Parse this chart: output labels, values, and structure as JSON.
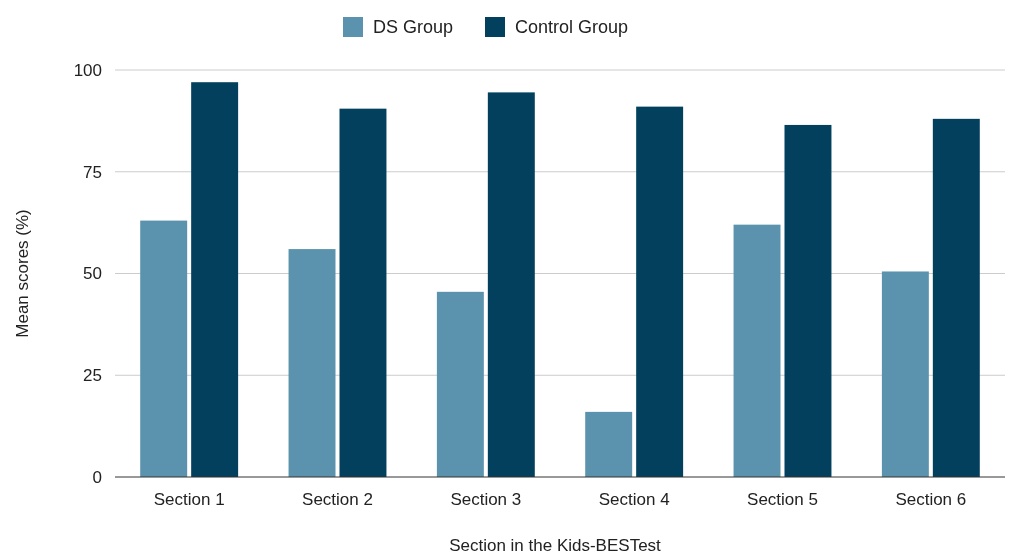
{
  "chart_data": {
    "type": "bar",
    "xlabel": "Section in the Kids-BESTest",
    "ylabel": "Mean scores (%)",
    "categories": [
      "Section 1",
      "Section 2",
      "Section 3",
      "Section 4",
      "Section 5",
      "Section 6"
    ],
    "series": [
      {
        "name": "DS Group",
        "color": "#5b93ae",
        "values": [
          63,
          56,
          45.5,
          16,
          62,
          50.5
        ]
      },
      {
        "name": "Control Group",
        "color": "#02405e",
        "values": [
          97,
          90.5,
          94.5,
          91,
          86.5,
          88
        ]
      }
    ],
    "ylim": [
      0,
      100
    ],
    "yticks": [
      0,
      25,
      50,
      75,
      100
    ],
    "grid": "y",
    "legend": "top"
  }
}
